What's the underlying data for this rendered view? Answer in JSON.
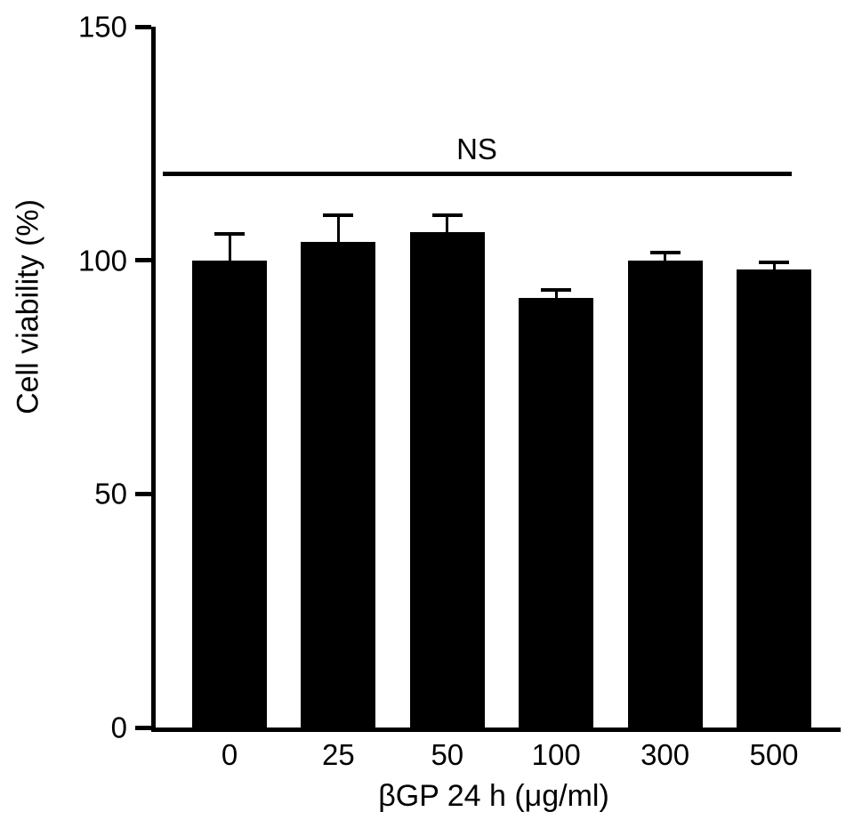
{
  "chart_data": {
    "type": "bar",
    "title": "",
    "categories": [
      "0",
      "25",
      "50",
      "100",
      "300",
      "500"
    ],
    "values": [
      100,
      104,
      106,
      92,
      100,
      98
    ],
    "errors": [
      6,
      6,
      4,
      2,
      2,
      2
    ],
    "xlabel": "βGP 24 h (μg/ml)",
    "ylabel": "Cell viability (%)",
    "ylim": [
      0,
      150
    ],
    "yticks": [
      0,
      50,
      100,
      150
    ],
    "bar_color": "#000000",
    "background_color": "#ffffff",
    "grid": false,
    "legend": false,
    "annotation": {
      "label": "NS",
      "y": 118
    }
  }
}
